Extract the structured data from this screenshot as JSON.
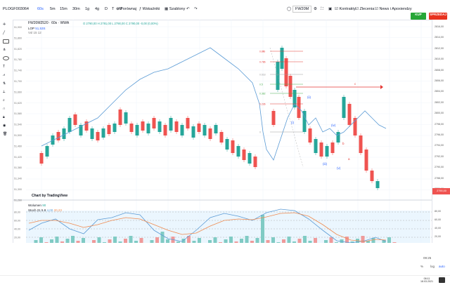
{
  "toolbar": {
    "symbol": "PLOGF003064",
    "intervals": [
      "60s",
      "5m",
      "15m",
      "30m",
      "1g",
      "4g",
      "D",
      "T",
      "M"
    ],
    "active_interval": "60s",
    "compare_label": "Porównaj",
    "indicators_label": "Wskaźniki",
    "template_label": "Szablony",
    "instrument_select": "FW20M",
    "contract_label": "Kontrakty",
    "orders_label": "Zlecenia",
    "news_label": "News i Apoxiendzy",
    "buy_label": "KUP",
    "sell_label": "SPRZEDAJ"
  },
  "chart": {
    "title": "FW20M2520 · 60s · WWA",
    "ohlc": "O 2790,00  H 2791,00  L 2790,00  C 2790,00  -0,00 (0,00%)",
    "lop_label": "LOP",
    "lop_value": "51,53S",
    "vol_label": "Vol",
    "vol_value": "15 12",
    "watermark": "Chart by TradingView",
    "left_axis": [
      "51,900",
      "51,860",
      "51,820",
      "51,780",
      "51,740",
      "51,700",
      "51,660",
      "51,620",
      "51,580",
      "51,540",
      "51,500",
      "51,460",
      "51,420",
      "51,380",
      "51,340",
      "51,300",
      "51,260"
    ],
    "right_axis": [
      "2816,00",
      "2814,00",
      "2812,00",
      "2810,00",
      "2808,00",
      "2806,00",
      "2804,00",
      "2802,00",
      "2800,00",
      "2798,00",
      "2796,00",
      "2794,00",
      "2792,00",
      "2790,00",
      "2788,00",
      "2786,00"
    ],
    "last_price": "2790,00",
    "fib_labels": [
      "0.8fib",
      "0.786",
      "0.618",
      "0.5",
      "0.382",
      "0.236",
      "0"
    ],
    "wave_labels": [
      "(i)",
      "(ii)",
      "(iii)",
      "(iv)",
      "(v)",
      "a",
      "b",
      "c"
    ]
  },
  "oscillator": {
    "title": "Wolumen",
    "title_value": "90",
    "stoch_label": "Stoch 21 5 8",
    "stoch_k": "4,00",
    "stoch_d": "20,23",
    "levels": [
      "80,00",
      "60,00",
      "40,00",
      "20,00"
    ]
  },
  "bottom": {
    "time": "09:25",
    "pct_label": "%",
    "log_label": "log",
    "auto_label": "auto"
  },
  "taskbar": {
    "clock": "08:11",
    "date": "18.03.2021"
  }
}
